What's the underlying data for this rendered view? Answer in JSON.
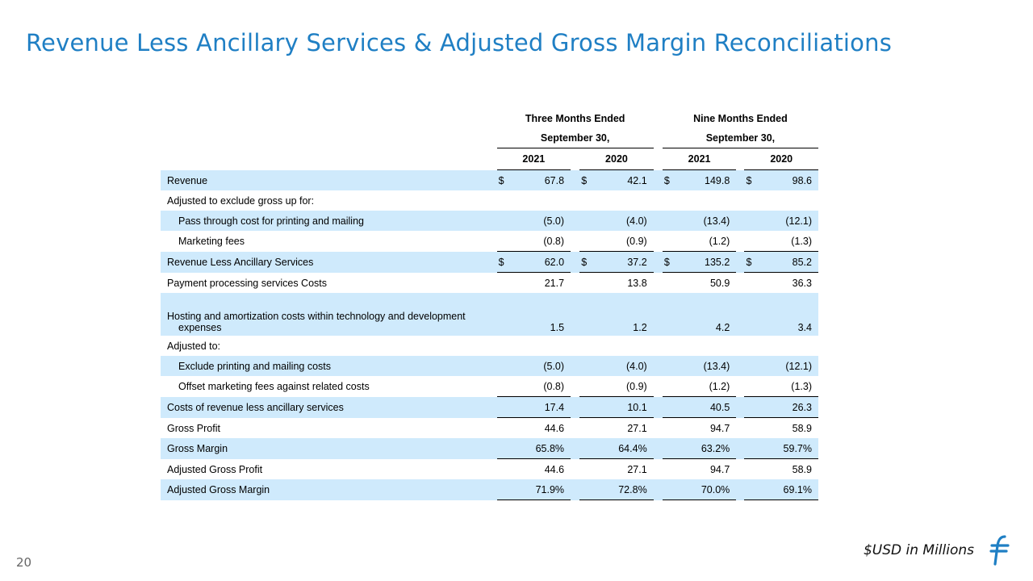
{
  "title": "Revenue Less Ancillary Services & Adjusted Gross Margin Reconciliations",
  "header": {
    "three_months": "Three Months Ended",
    "nine_months": "Nine Months Ended",
    "period": "September 30,",
    "years": [
      "2021",
      "2020",
      "2021",
      "2020"
    ]
  },
  "rows": [
    {
      "label": "Revenue",
      "values": [
        "67.8",
        "42.1",
        "149.8",
        "98.6"
      ],
      "dollar": "$"
    },
    {
      "label": "Adjusted to exclude gross up for:",
      "values": [
        "",
        "",
        "",
        ""
      ]
    },
    {
      "label": "Pass through cost for printing and mailing",
      "values": [
        "(5.0)",
        "(4.0)",
        "(13.4)",
        "(12.1)"
      ]
    },
    {
      "label": "Marketing fees",
      "values": [
        "(0.8)",
        "(0.9)",
        "(1.2)",
        "(1.3)"
      ]
    },
    {
      "label": "Revenue Less Ancillary Services",
      "values": [
        "62.0",
        "37.2",
        "135.2",
        "85.2"
      ],
      "dollar": "$"
    },
    {
      "label": "Payment processing services Costs",
      "values": [
        "21.7",
        "13.8",
        "50.9",
        "36.3"
      ]
    },
    {
      "label_line1": "Hosting and amortization costs within technology and development",
      "label_line2": "expenses",
      "values": [
        "1.5",
        "1.2",
        "4.2",
        "3.4"
      ]
    },
    {
      "label": "Adjusted to:",
      "values": [
        "",
        "",
        "",
        ""
      ]
    },
    {
      "label": "Exclude printing and mailing costs",
      "values": [
        "(5.0)",
        "(4.0)",
        "(13.4)",
        "(12.1)"
      ]
    },
    {
      "label": "Offset marketing fees against related costs",
      "values": [
        "(0.8)",
        "(0.9)",
        "(1.2)",
        "(1.3)"
      ]
    },
    {
      "label": "Costs of revenue less ancillary services",
      "values": [
        "17.4",
        "10.1",
        "40.5",
        "26.3"
      ]
    },
    {
      "label": "Gross Profit",
      "values": [
        "44.6",
        "27.1",
        "94.7",
        "58.9"
      ]
    },
    {
      "label": "Gross Margin",
      "values": [
        "65.8%",
        "64.4%",
        "63.2%",
        "59.7%"
      ]
    },
    {
      "label": "Adjusted Gross Profit",
      "values": [
        "44.6",
        "27.1",
        "94.7",
        "58.9"
      ]
    },
    {
      "label": "Adjusted Gross Margin",
      "values": [
        "71.9%",
        "72.8%",
        "70.0%",
        "69.1%"
      ]
    }
  ],
  "footer_note": "$USD in Millions",
  "page_number": "20",
  "colors": {
    "title": "#1f7fc4",
    "row_fill": "#cfeafc",
    "logo": "#1f7fc4"
  }
}
